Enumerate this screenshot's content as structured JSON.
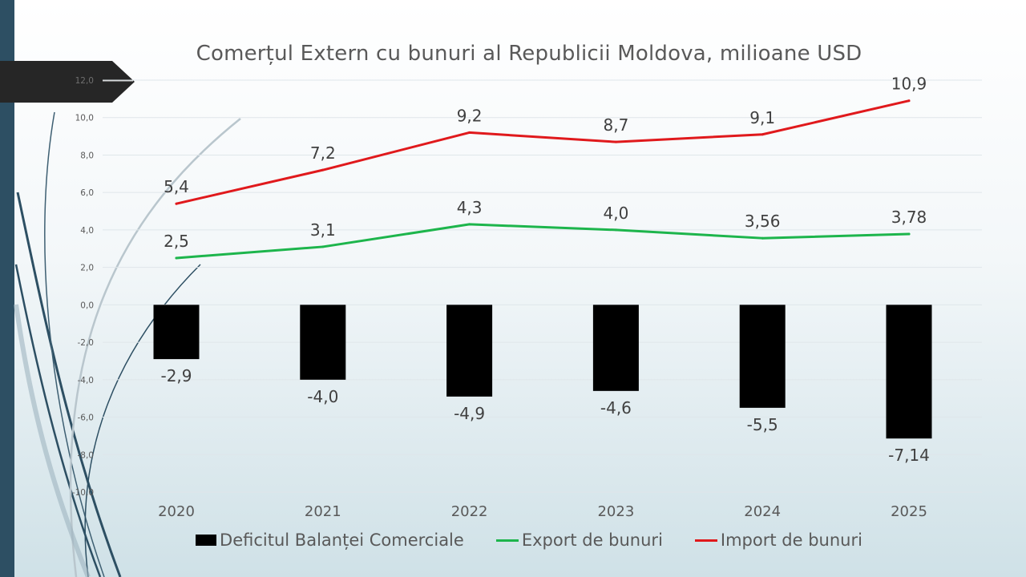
{
  "chart_data": {
    "type": "bar+line",
    "title": "Comerțul Extern cu bunuri al Republicii Moldova, milioane USD",
    "categories": [
      "2020",
      "2021",
      "2022",
      "2023",
      "2024",
      "2025"
    ],
    "ylim": [
      -10,
      12
    ],
    "yticks": [
      12,
      10,
      8,
      6,
      4,
      2,
      0,
      -2,
      -4,
      -6,
      -8,
      -10
    ],
    "ytick_labels": [
      "12,0",
      "10,0",
      "8,0",
      "6,0",
      "4,0",
      "2,0",
      "0,0",
      "-2,0",
      "-4,0",
      "-6,0",
      "-8,0",
      "-10,0"
    ],
    "grid": true,
    "legend_position": "bottom",
    "series": [
      {
        "name": "Deficitul Balanței Comerciale",
        "kind": "bar",
        "color": "#000000",
        "values": [
          -2.9,
          -4.0,
          -4.9,
          -4.6,
          -5.5,
          -7.14
        ],
        "labels": [
          "-2,9",
          "-4,0",
          "-4,9",
          "-4,6",
          "-5,5",
          "-7,14"
        ]
      },
      {
        "name": "Export de bunuri",
        "kind": "line",
        "color": "#1db54c",
        "values": [
          2.5,
          3.1,
          4.3,
          4.0,
          3.56,
          3.78
        ],
        "labels": [
          "2,5",
          "3,1",
          "4,3",
          "4,0",
          "3,56",
          "3,78"
        ]
      },
      {
        "name": "Import de bunuri",
        "kind": "line",
        "color": "#e0191c",
        "values": [
          5.4,
          7.2,
          9.2,
          8.7,
          9.1,
          10.9
        ],
        "labels": [
          "5,4",
          "7,2",
          "9,2",
          "8,7",
          "9,1",
          "10,9"
        ]
      }
    ]
  },
  "theme": {
    "band_color": "#2d4f63",
    "tab_color": "#262626",
    "grid_color": "#dfe6ea",
    "text_color": "#595959"
  }
}
